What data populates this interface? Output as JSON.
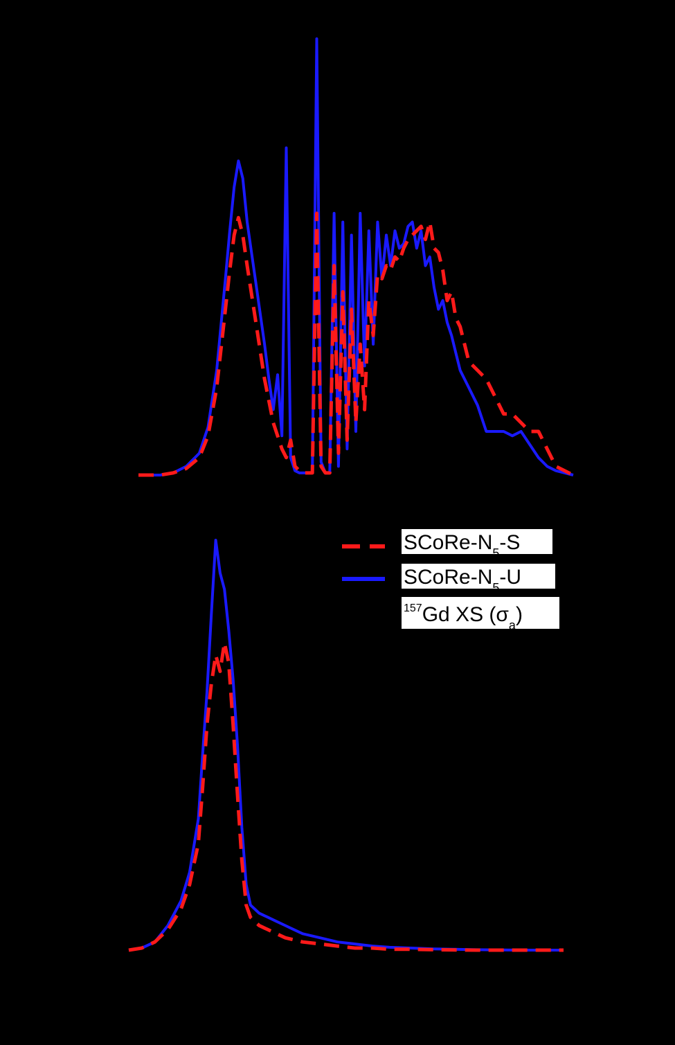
{
  "colors": {
    "background": "#000000",
    "series_s": "#ff1a1a",
    "series_u": "#1a1aff",
    "legend_label_bg": "#ffffff",
    "legend_text": "#000000"
  },
  "legend": {
    "entries": [
      {
        "key": "s",
        "line_style": "dashed",
        "color": "#ff1a1a",
        "label_main": "SCoRe-N",
        "label_sub": "5",
        "label_end": "-S"
      },
      {
        "key": "u",
        "line_style": "solid",
        "color": "#1a1aff",
        "label_main": "SCoRe-N",
        "label_sub": "5",
        "label_end": "-U"
      },
      {
        "key": "xs",
        "line_style": "none",
        "color": "#000000",
        "label_sup": "157",
        "label_main": "Gd XS (σ",
        "label_sub": "a",
        "label_end": ")"
      }
    ]
  },
  "chart_data": [
    {
      "type": "line",
      "panel": "top",
      "title": "",
      "xlabel": "",
      "ylabel": "",
      "xlim": [
        0,
        100
      ],
      "ylim": [
        0,
        100
      ],
      "grid": false,
      "legend_position": "none",
      "series": [
        {
          "key": "s",
          "name": "SCoRe-N5-S",
          "x": [
            0,
            5,
            8,
            11,
            14,
            16,
            18,
            20,
            21,
            22,
            23,
            24,
            25,
            27,
            29,
            31,
            33,
            34,
            35,
            36,
            37,
            38,
            39,
            40,
            41,
            42,
            43,
            44,
            45,
            46,
            47,
            48,
            49,
            50,
            51,
            52,
            53,
            54,
            55,
            56,
            57,
            58,
            59,
            60,
            61,
            62,
            63,
            64,
            65,
            66,
            67,
            68,
            69,
            70,
            71,
            72,
            73,
            74,
            75,
            76,
            78,
            80,
            82,
            84,
            86,
            88,
            90,
            92,
            94,
            96,
            100
          ],
          "y": [
            0,
            0,
            0.5,
            1.5,
            4,
            9,
            20,
            38,
            47,
            55,
            59,
            55,
            48,
            35,
            22,
            12,
            6,
            4,
            8,
            2,
            1,
            0.5,
            0.5,
            0.5,
            60,
            2,
            0.5,
            0.5,
            48,
            5,
            42,
            8,
            38,
            12,
            30,
            15,
            40,
            32,
            46,
            45,
            48,
            47,
            50,
            49,
            52,
            54,
            55,
            56,
            57,
            54,
            58,
            52,
            51,
            47,
            40,
            42,
            36,
            34,
            30,
            26,
            24,
            22,
            18,
            14,
            14,
            12,
            10,
            10,
            6,
            2,
            0
          ]
        },
        {
          "key": "u",
          "name": "SCoRe-N5-U",
          "x": [
            0,
            5,
            8,
            11,
            14,
            16,
            18,
            20,
            21,
            22,
            23,
            24,
            25,
            27,
            29,
            30,
            31,
            32,
            33,
            34,
            35,
            36,
            37,
            38,
            39,
            40,
            41,
            42,
            43,
            44,
            45,
            46,
            47,
            48,
            49,
            50,
            51,
            52,
            53,
            54,
            55,
            56,
            57,
            58,
            59,
            60,
            61,
            62,
            63,
            64,
            65,
            66,
            67,
            68,
            69,
            70,
            71,
            72,
            73,
            74,
            75,
            76,
            78,
            80,
            82,
            84,
            86,
            88,
            90,
            92,
            94,
            96,
            100
          ],
          "y": [
            0,
            0,
            0.5,
            2,
            5,
            11,
            24,
            45,
            56,
            66,
            72,
            68,
            58,
            44,
            30,
            22,
            15,
            23,
            9,
            75,
            4,
            1,
            0.5,
            0.5,
            0.5,
            0.5,
            100,
            3,
            0.5,
            0.5,
            60,
            2,
            58,
            6,
            55,
            10,
            60,
            25,
            56,
            30,
            58,
            45,
            55,
            48,
            56,
            52,
            53,
            57,
            58,
            52,
            56,
            48,
            50,
            43,
            38,
            40,
            35,
            32,
            28,
            24,
            22,
            20,
            16,
            10,
            10,
            10,
            9,
            10,
            7,
            4,
            2,
            1,
            0
          ]
        }
      ]
    },
    {
      "type": "line",
      "panel": "bottom",
      "title": "",
      "xlabel": "",
      "ylabel": "",
      "xlim": [
        0,
        100
      ],
      "ylim": [
        0,
        100
      ],
      "grid": false,
      "legend_position": "top-right",
      "series": [
        {
          "key": "s",
          "name": "SCoRe-N5-S",
          "x": [
            0,
            3,
            6,
            9,
            12,
            14,
            16,
            17,
            18,
            19,
            20,
            21,
            22,
            23,
            24,
            25,
            26,
            27,
            28,
            29,
            30,
            32,
            34,
            36,
            38,
            40,
            44,
            48,
            52,
            56,
            60,
            65,
            70,
            80,
            90,
            100
          ],
          "y": [
            0,
            0.5,
            2,
            5,
            10,
            16,
            26,
            40,
            55,
            65,
            72,
            68,
            75,
            70,
            55,
            38,
            22,
            11,
            8,
            7,
            6,
            5,
            4,
            3,
            2.5,
            2,
            1.5,
            1,
            0.5,
            0.5,
            0.2,
            0.2,
            0.1,
            0,
            0,
            0
          ]
        },
        {
          "key": "u",
          "name": "SCoRe-N5-U",
          "x": [
            0,
            3,
            6,
            9,
            12,
            14,
            16,
            17,
            18,
            19,
            20,
            21,
            22,
            23,
            24,
            25,
            26,
            27,
            28,
            29,
            30,
            32,
            34,
            36,
            38,
            40,
            44,
            48,
            52,
            56,
            60,
            65,
            70,
            80,
            90,
            100
          ],
          "y": [
            0,
            0.5,
            2,
            6,
            12,
            19,
            32,
            48,
            63,
            82,
            100,
            92,
            88,
            78,
            66,
            50,
            30,
            16,
            11,
            10,
            9,
            8,
            7,
            6,
            5,
            4,
            3,
            2,
            1.5,
            1,
            0.7,
            0.5,
            0.3,
            0.1,
            0,
            0
          ]
        }
      ]
    }
  ]
}
